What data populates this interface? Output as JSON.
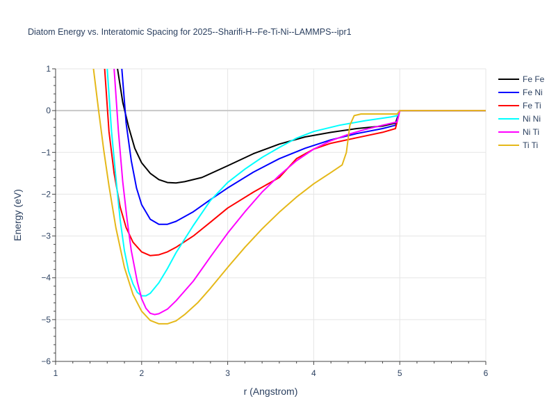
{
  "chart_data": {
    "type": "line",
    "title": "Diatom Energy vs. Interatomic Spacing for 2025--Sharifi-H--Fe-Ti-Ni--LAMMPS--ipr1",
    "xlabel": "r (Angstrom)",
    "ylabel": "Energy (eV)",
    "xlim": [
      1,
      6
    ],
    "ylim": [
      -6,
      1
    ],
    "xticks": [
      1,
      2,
      3,
      4,
      5,
      6
    ],
    "yticks": [
      1,
      0,
      -1,
      -2,
      -3,
      -4,
      -5,
      -6
    ],
    "xtick_labels": [
      "1",
      "2",
      "3",
      "4",
      "5",
      "6"
    ],
    "ytick_labels": [
      "1",
      "0",
      "−1",
      "−2",
      "−3",
      "−4",
      "−5",
      "−6"
    ],
    "grid": true,
    "legend_position": "top-right",
    "series": [
      {
        "name": "Fe Fe",
        "color": "#000000",
        "x": [
          1.72,
          1.78,
          1.85,
          1.92,
          2.0,
          2.1,
          2.2,
          2.3,
          2.4,
          2.5,
          2.7,
          3.0,
          3.3,
          3.6,
          3.9,
          4.2,
          4.5,
          4.8,
          4.95,
          5.0,
          5.5,
          6.0
        ],
        "y": [
          1.0,
          0.2,
          -0.4,
          -0.9,
          -1.25,
          -1.5,
          -1.65,
          -1.72,
          -1.73,
          -1.7,
          -1.6,
          -1.32,
          -1.03,
          -0.8,
          -0.63,
          -0.52,
          -0.43,
          -0.37,
          -0.3,
          0.0,
          0.0,
          0.0
        ]
      },
      {
        "name": "Fe Ni",
        "color": "#0000ff",
        "x": [
          1.77,
          1.82,
          1.88,
          1.94,
          2.0,
          2.1,
          2.2,
          2.3,
          2.4,
          2.6,
          2.8,
          3.0,
          3.3,
          3.6,
          3.9,
          4.2,
          4.5,
          4.8,
          4.95,
          5.0,
          5.5,
          6.0
        ],
        "y": [
          1.0,
          -0.3,
          -1.2,
          -1.85,
          -2.25,
          -2.6,
          -2.72,
          -2.72,
          -2.65,
          -2.42,
          -2.13,
          -1.85,
          -1.47,
          -1.15,
          -0.9,
          -0.7,
          -0.55,
          -0.43,
          -0.35,
          0.0,
          0.0,
          0.0
        ]
      },
      {
        "name": "Fe Ti",
        "color": "#ff0000",
        "x": [
          1.57,
          1.62,
          1.68,
          1.75,
          1.82,
          1.9,
          2.0,
          2.1,
          2.2,
          2.3,
          2.4,
          2.6,
          2.8,
          3.0,
          3.3,
          3.6,
          3.8,
          4.0,
          4.2,
          4.5,
          4.8,
          4.95,
          5.0,
          5.5,
          6.0
        ],
        "y": [
          1.0,
          -0.5,
          -1.5,
          -2.3,
          -2.8,
          -3.15,
          -3.38,
          -3.47,
          -3.45,
          -3.38,
          -3.27,
          -3.0,
          -2.67,
          -2.33,
          -1.95,
          -1.6,
          -1.15,
          -0.92,
          -0.78,
          -0.65,
          -0.52,
          -0.43,
          0.0,
          0.0,
          0.0
        ]
      },
      {
        "name": "Ni Ni",
        "color": "#00ffff",
        "x": [
          1.6,
          1.65,
          1.7,
          1.75,
          1.8,
          1.85,
          1.9,
          1.95,
          2.0,
          2.05,
          2.1,
          2.2,
          2.3,
          2.4,
          2.6,
          2.8,
          3.0,
          3.2,
          3.4,
          3.6,
          3.8,
          4.0,
          4.3,
          4.6,
          4.9,
          4.97,
          5.0,
          5.5,
          6.0
        ],
        "y": [
          1.0,
          -0.5,
          -1.6,
          -2.6,
          -3.35,
          -3.85,
          -4.15,
          -4.35,
          -4.43,
          -4.43,
          -4.37,
          -4.12,
          -3.78,
          -3.4,
          -2.75,
          -2.15,
          -1.72,
          -1.4,
          -1.12,
          -0.88,
          -0.66,
          -0.5,
          -0.35,
          -0.24,
          -0.15,
          -0.12,
          0.0,
          0.0,
          0.0
        ]
      },
      {
        "name": "Ni Ti",
        "color": "#ff00ff",
        "x": [
          1.68,
          1.73,
          1.78,
          1.83,
          1.88,
          1.95,
          2.0,
          2.05,
          2.1,
          2.15,
          2.2,
          2.3,
          2.4,
          2.6,
          2.8,
          3.0,
          3.2,
          3.4,
          3.6,
          3.8,
          4.0,
          4.2,
          4.4,
          4.6,
          4.8,
          4.97,
          5.0,
          5.5,
          6.0
        ],
        "y": [
          1.0,
          -0.5,
          -1.7,
          -2.6,
          -3.35,
          -4.1,
          -4.5,
          -4.73,
          -4.85,
          -4.88,
          -4.86,
          -4.75,
          -4.55,
          -4.08,
          -3.5,
          -2.93,
          -2.42,
          -1.95,
          -1.55,
          -1.2,
          -0.92,
          -0.72,
          -0.57,
          -0.45,
          -0.35,
          -0.27,
          0.0,
          0.0,
          0.0
        ]
      },
      {
        "name": "Ti Ti",
        "color": "#e5b819",
        "x": [
          1.44,
          1.5,
          1.56,
          1.62,
          1.7,
          1.8,
          1.9,
          2.0,
          2.1,
          2.2,
          2.3,
          2.4,
          2.5,
          2.65,
          2.8,
          3.0,
          3.2,
          3.4,
          3.6,
          3.8,
          4.0,
          4.2,
          4.33,
          4.38,
          4.42,
          4.47,
          4.55,
          4.7,
          4.97,
          5.0,
          5.5,
          6.0
        ],
        "y": [
          1.0,
          0.0,
          -0.95,
          -1.8,
          -2.8,
          -3.75,
          -4.4,
          -4.8,
          -5.02,
          -5.1,
          -5.1,
          -5.03,
          -4.88,
          -4.6,
          -4.25,
          -3.75,
          -3.27,
          -2.83,
          -2.43,
          -2.07,
          -1.75,
          -1.48,
          -1.3,
          -1.0,
          -0.35,
          -0.12,
          -0.08,
          -0.08,
          -0.08,
          0.0,
          0.0,
          0.0
        ]
      }
    ]
  }
}
